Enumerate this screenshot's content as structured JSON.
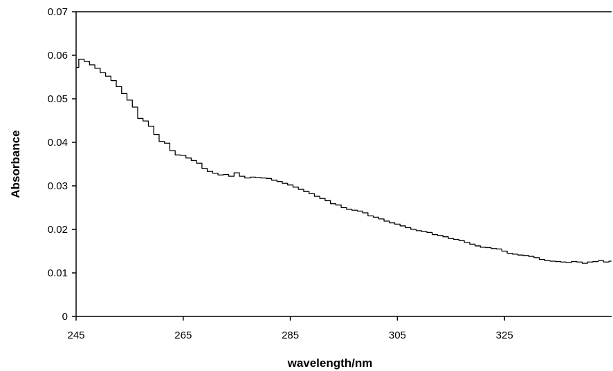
{
  "chart_data": {
    "type": "line",
    "title": "",
    "xlabel": "wavelength/nm",
    "ylabel": "Absorbance",
    "xlim": [
      245,
      345
    ],
    "ylim": [
      0,
      0.07
    ],
    "x_ticks": [
      245,
      265,
      285,
      305,
      325
    ],
    "x_tick_labels": [
      "245",
      "265",
      "285",
      "305",
      "325"
    ],
    "y_ticks": [
      0,
      0.01,
      0.02,
      0.03,
      0.04,
      0.05,
      0.06,
      0.07
    ],
    "y_tick_labels": [
      "0",
      "0.01",
      "0.02",
      "0.03",
      "0.04",
      "0.05",
      "0.06",
      "0.07"
    ],
    "grid": false,
    "legend": "none",
    "line_color": "#000000",
    "series": [
      {
        "x": [
          245,
          246,
          247,
          248,
          249,
          250,
          251,
          252,
          253,
          254,
          255,
          256,
          257,
          258,
          259,
          260,
          261,
          262,
          263,
          264,
          265,
          266,
          267,
          268,
          269,
          270,
          271,
          272,
          273,
          274,
          275,
          276,
          277,
          278,
          279,
          280,
          281,
          282,
          283,
          284,
          285,
          286,
          287,
          288,
          289,
          290,
          291,
          292,
          293,
          294,
          295,
          296,
          297,
          298,
          299,
          300,
          301,
          302,
          303,
          304,
          305,
          306,
          307,
          308,
          309,
          310,
          311,
          312,
          313,
          314,
          315,
          316,
          317,
          318,
          319,
          320,
          321,
          322,
          323,
          324,
          325,
          326,
          327,
          328,
          329,
          330,
          331,
          332,
          333,
          334,
          335,
          336,
          337,
          338,
          339,
          340,
          341,
          342,
          343,
          344,
          345
        ],
        "values": [
          0.0572,
          0.0591,
          0.0586,
          0.0578,
          0.057,
          0.056,
          0.0552,
          0.0542,
          0.0528,
          0.0512,
          0.0497,
          0.0481,
          0.0455,
          0.0449,
          0.0437,
          0.0418,
          0.0402,
          0.0398,
          0.0381,
          0.0371,
          0.037,
          0.0364,
          0.0358,
          0.0352,
          0.034,
          0.0333,
          0.0329,
          0.0325,
          0.0326,
          0.0322,
          0.033,
          0.0322,
          0.0318,
          0.032,
          0.0319,
          0.0318,
          0.0317,
          0.0313,
          0.031,
          0.0306,
          0.0302,
          0.0297,
          0.0292,
          0.0287,
          0.0282,
          0.0276,
          0.0271,
          0.0266,
          0.0259,
          0.0256,
          0.025,
          0.0246,
          0.0244,
          0.0242,
          0.0238,
          0.0231,
          0.0228,
          0.0224,
          0.0219,
          0.0215,
          0.0212,
          0.0208,
          0.0204,
          0.02,
          0.0197,
          0.0195,
          0.0193,
          0.0188,
          0.0186,
          0.0183,
          0.0179,
          0.0177,
          0.0174,
          0.017,
          0.0166,
          0.0162,
          0.0159,
          0.0158,
          0.0156,
          0.0155,
          0.015,
          0.0145,
          0.0143,
          0.0141,
          0.014,
          0.0138,
          0.0135,
          0.0131,
          0.0128,
          0.0127,
          0.0126,
          0.0125,
          0.0124,
          0.0126,
          0.0125,
          0.0122,
          0.0125,
          0.0126,
          0.0128,
          0.0125,
          0.0127
        ]
      }
    ]
  }
}
